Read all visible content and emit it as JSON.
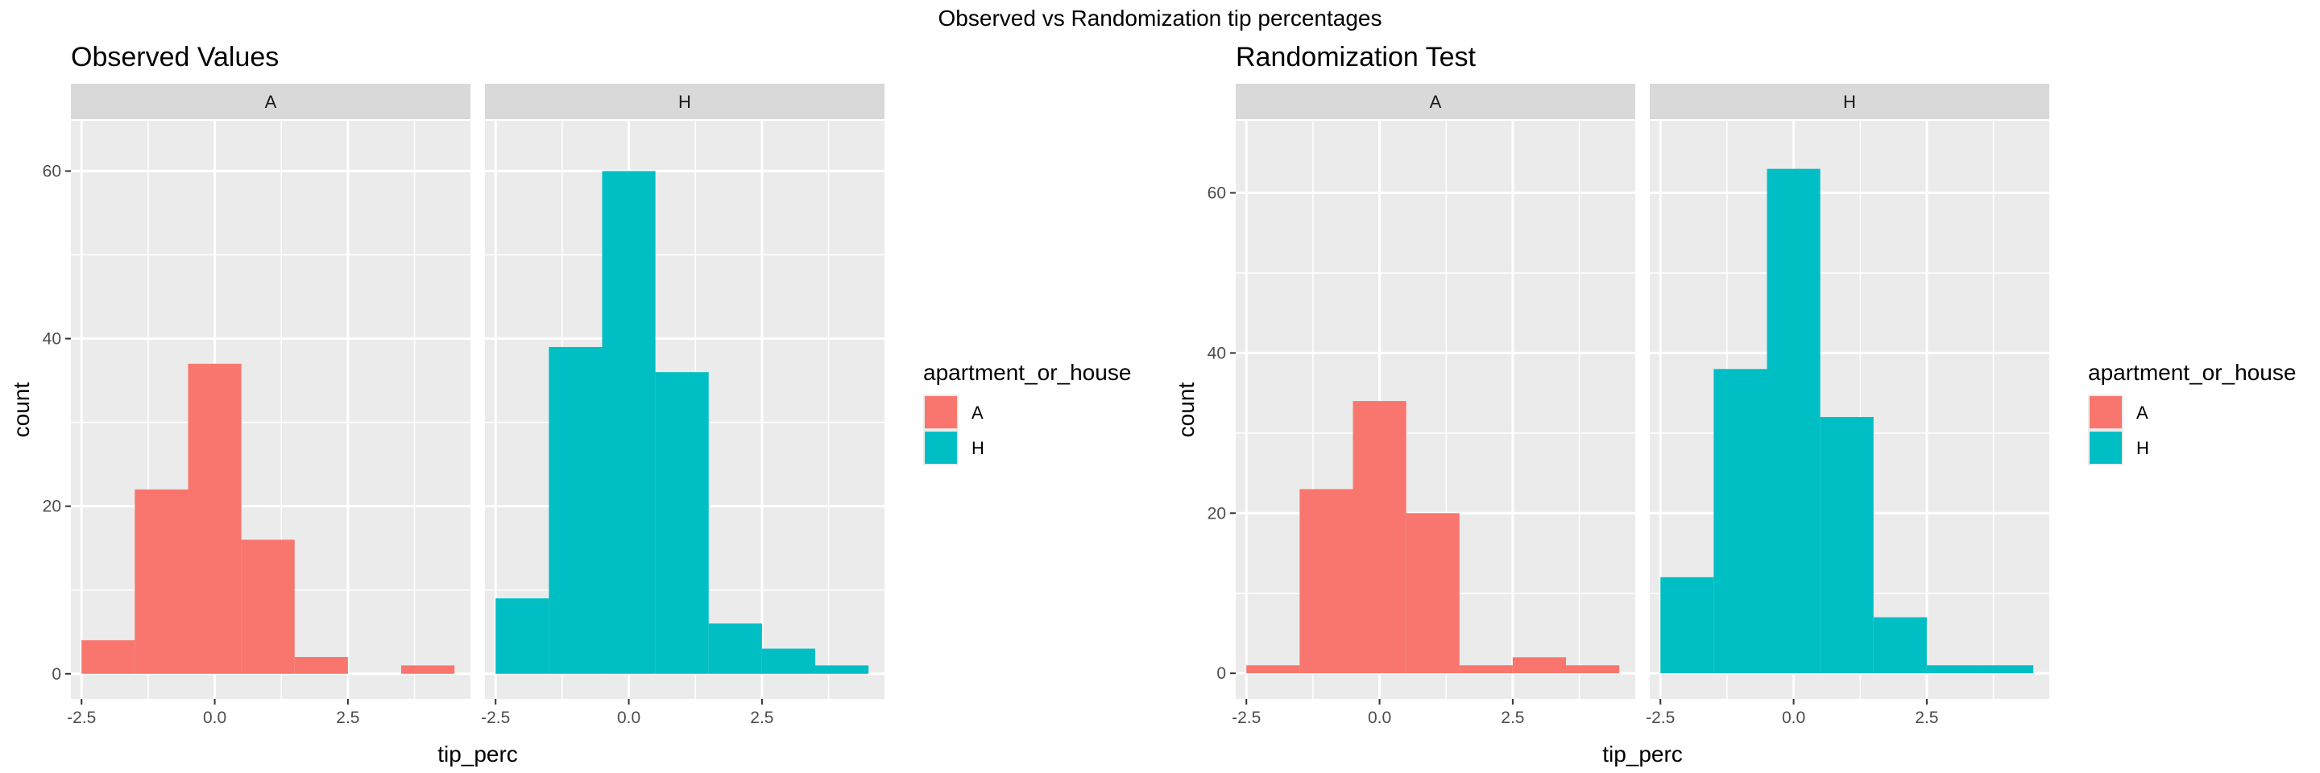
{
  "suptitle": "Observed vs Randomization tip percentages",
  "colors": {
    "A": "#F8766D",
    "H": "#00BFC4",
    "panel_bg": "#EBEBEB",
    "strip_bg": "#D9D9D9",
    "grid": "#FFFFFF",
    "text": "#000000",
    "tick_text": "#4D4D4D"
  },
  "chart_data": [
    {
      "type": "bar",
      "title": "Observed Values",
      "xlabel": "tip_perc",
      "ylabel": "count",
      "xlim": [
        -2.7,
        4.8
      ],
      "ylim": [
        -3,
        66
      ],
      "x_ticks": [
        -2.5,
        0.0,
        2.5
      ],
      "x_tick_labels": [
        "-2.5",
        "0.0",
        "2.5"
      ],
      "y_ticks": [
        0,
        20,
        40,
        60
      ],
      "y_tick_labels": [
        "0",
        "20",
        "40",
        "60"
      ],
      "bin_edges": [
        -2.5,
        -1.5,
        -0.5,
        0.5,
        1.5,
        2.5,
        3.5,
        4.5
      ],
      "legend_title": "apartment_or_house",
      "legend_position": "right",
      "grid": true,
      "facets": [
        {
          "label": "A",
          "values": [
            4,
            22,
            37,
            16,
            2,
            0,
            1
          ]
        },
        {
          "label": "H",
          "values": [
            9,
            39,
            60,
            36,
            6,
            3,
            1
          ]
        }
      ]
    },
    {
      "type": "bar",
      "title": "Randomization Test",
      "xlabel": "tip_perc",
      "ylabel": "count",
      "xlim": [
        -2.7,
        4.8
      ],
      "ylim": [
        -3.2,
        69
      ],
      "x_ticks": [
        -2.5,
        0.0,
        2.5
      ],
      "x_tick_labels": [
        "-2.5",
        "0.0",
        "2.5"
      ],
      "y_ticks": [
        0,
        20,
        40,
        60
      ],
      "y_tick_labels": [
        "0",
        "20",
        "40",
        "60"
      ],
      "bin_edges": [
        -2.5,
        -1.5,
        -0.5,
        0.5,
        1.5,
        2.5,
        3.5,
        4.5
      ],
      "legend_title": "apartment_or_house",
      "legend_position": "right",
      "grid": true,
      "facets": [
        {
          "label": "A",
          "values": [
            1,
            23,
            34,
            20,
            1,
            2,
            1
          ]
        },
        {
          "label": "H",
          "values": [
            12,
            38,
            63,
            32,
            7,
            1,
            1
          ]
        }
      ]
    }
  ]
}
